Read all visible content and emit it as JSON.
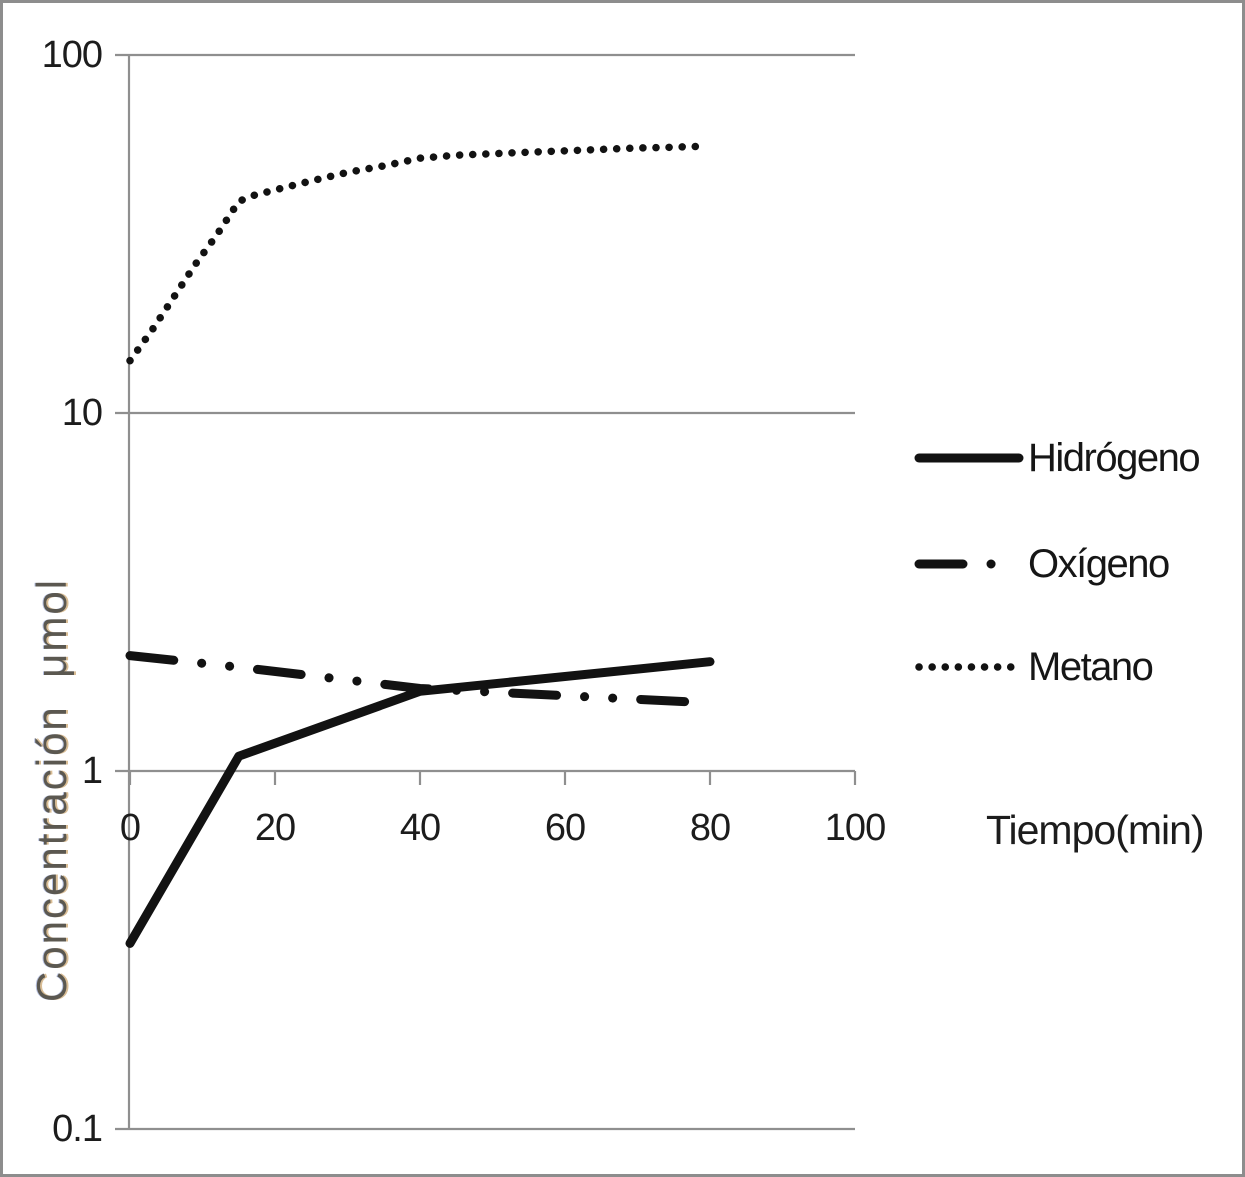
{
  "chart": {
    "y_axis_title": "Concentración  μmol",
    "x_axis_title": "Tiempo(min)",
    "y_tick_labels": [
      "100",
      "10",
      "1",
      "0.1"
    ],
    "x_tick_labels": [
      "0",
      "20",
      "40",
      "60",
      "80",
      "100"
    ],
    "colors": {
      "series": "#121212",
      "grid": "#8f8f8f",
      "tick_text": "#1c1c1c",
      "frame": "#8d8d8d",
      "background": "#ffffff"
    }
  },
  "chart_data": {
    "type": "line",
    "title": "",
    "xlabel": "Tiempo(min)",
    "ylabel": "Concentración  μmol",
    "x_axis": {
      "range": [
        0,
        100
      ],
      "ticks": [
        0,
        20,
        40,
        60,
        80,
        100
      ]
    },
    "y_axis": {
      "scale": "log",
      "range": [
        0.1,
        100
      ],
      "ticks": [
        100,
        10,
        1,
        0.1
      ]
    },
    "grid": "horizontal-decades",
    "legend": {
      "position": "right",
      "items": [
        {
          "label": "Hidrógeno",
          "style": "solid"
        },
        {
          "label": "Oxígeno",
          "style": "dash-dot"
        },
        {
          "label": "Metano",
          "style": "dotted"
        }
      ]
    },
    "series": [
      {
        "name": "Hidrógeno",
        "style": "solid",
        "points": [
          [
            0,
            0.33
          ],
          [
            15,
            1.1
          ],
          [
            40,
            1.67
          ],
          [
            80,
            2.02
          ]
        ]
      },
      {
        "name": "Oxígeno",
        "style": "dash-dot",
        "points": [
          [
            0,
            2.1
          ],
          [
            15,
            1.95
          ],
          [
            40,
            1.7
          ],
          [
            80,
            1.55
          ]
        ]
      },
      {
        "name": "Metano",
        "style": "dotted",
        "points": [
          [
            0,
            14
          ],
          [
            3,
            17
          ],
          [
            6,
            21
          ],
          [
            9,
            26
          ],
          [
            12,
            31.5
          ],
          [
            15,
            39
          ],
          [
            17,
            40.5
          ],
          [
            20,
            42
          ],
          [
            25,
            44.5
          ],
          [
            30,
            47
          ],
          [
            35,
            49
          ],
          [
            40,
            51.5
          ],
          [
            45,
            52.5
          ],
          [
            50,
            53
          ],
          [
            55,
            53.5
          ],
          [
            60,
            54
          ],
          [
            65,
            54.5
          ],
          [
            70,
            55
          ],
          [
            74,
            55.2
          ],
          [
            78,
            55.5
          ]
        ]
      }
    ]
  }
}
